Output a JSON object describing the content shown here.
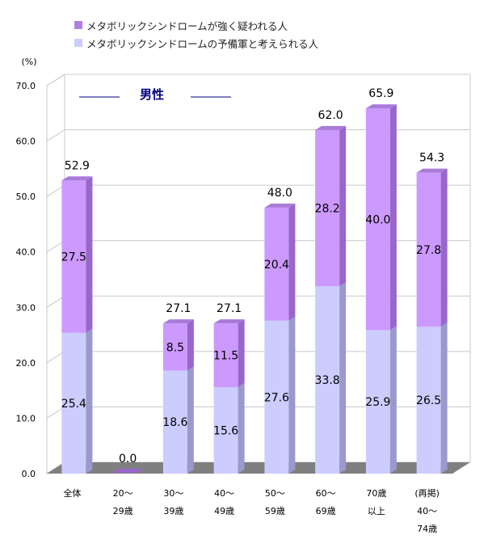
{
  "chart_data": {
    "type": "bar",
    "stacked": true,
    "title": "男性",
    "ylabel": "(%)",
    "ylim": [
      0,
      70
    ],
    "yticks": [
      "0.0",
      "10.0",
      "20.0",
      "30.0",
      "40.0",
      "50.0",
      "60.0",
      "70.0"
    ],
    "categories": [
      [
        "全体"
      ],
      [
        "20～",
        "29歳"
      ],
      [
        "30～",
        "39歳"
      ],
      [
        "40～",
        "49歳"
      ],
      [
        "50～",
        "59歳"
      ],
      [
        "60～",
        "69歳"
      ],
      [
        "70歳",
        "以上"
      ],
      [
        "(再掲)",
        "40～",
        "74歳"
      ]
    ],
    "series": [
      {
        "name": "メタボリックシンドロームの予備軍と考えられる人",
        "color": "#ccccff",
        "values": [
          25.4,
          0.0,
          18.6,
          15.6,
          27.6,
          33.8,
          25.9,
          26.5
        ],
        "labels": [
          "25.4",
          "",
          "18.6",
          "15.6",
          "27.6",
          "33.8",
          "25.9",
          "26.5"
        ]
      },
      {
        "name": "メタボリックシンドロームが強く疑われる人",
        "color": "#cc99ff",
        "values": [
          27.5,
          0.0,
          8.5,
          11.5,
          20.4,
          28.2,
          40.0,
          27.8
        ],
        "labels": [
          "27.5",
          "",
          "8.5",
          "11.5",
          "20.4",
          "28.2",
          "40.0",
          "27.8"
        ]
      }
    ],
    "totals": [
      "52.9",
      "0.0",
      "27.1",
      "27.1",
      "48.0",
      "62.0",
      "65.9",
      "54.3"
    ],
    "legend": [
      {
        "name": "メタボリックシンドロームが強く疑われる人",
        "color": "#b27fe0"
      },
      {
        "name": "メタボリックシンドロームの予備軍と考えられる人",
        "color": "#ccccff"
      }
    ],
    "grid": true,
    "legend_position": "top-left"
  }
}
